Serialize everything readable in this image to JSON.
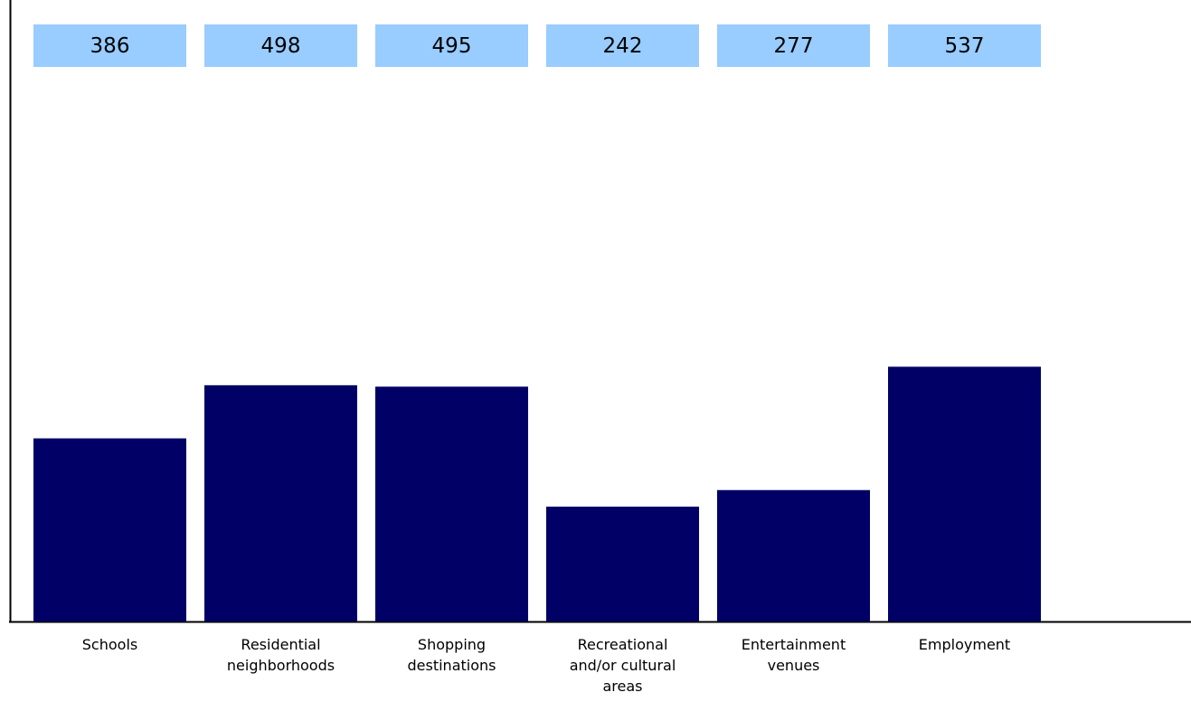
{
  "chart_data": {
    "type": "bar",
    "categories": [
      "Schools",
      "Residential neighborhoods",
      "Shopping destinations",
      "Recreational and/or cultural areas",
      "Entertainment venues",
      "Employment"
    ],
    "values": [
      386,
      498,
      495,
      242,
      277,
      537
    ],
    "color": "#000066",
    "label_color": "#99ccff",
    "ylim": [
      0,
      1310
    ]
  }
}
